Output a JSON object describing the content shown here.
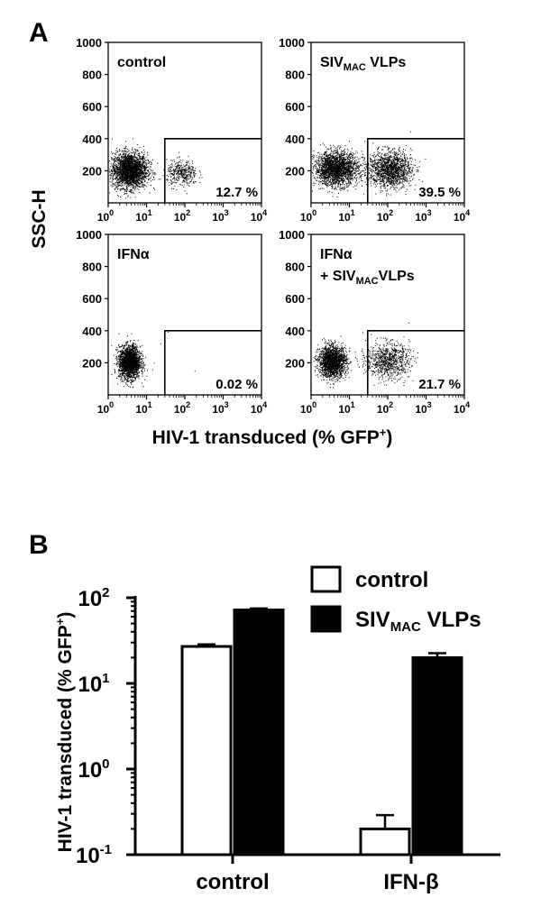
{
  "panel_a": {
    "letter": "A",
    "ylabel": "SSC-H",
    "xlabel_main": "HIV-1 transduced (% GFP",
    "xlabel_sup": "+",
    "xlabel_end": ")",
    "y_tick_labels": [
      "1000",
      "800",
      "600",
      "400",
      "200"
    ],
    "x_tick_base": "10",
    "x_tick_exps": [
      "0",
      "1",
      "2",
      "3",
      "4"
    ]
  },
  "panel_b": {
    "letter": "B",
    "ylabel_main": "HIV-1 transduced (% GFP",
    "ylabel_sup": "+",
    "ylabel_end": ")",
    "legend_control": "control",
    "legend_siv_prefix": "SIV",
    "legend_siv_sub": "MAC",
    "legend_siv_suffix": " VLPs",
    "tick_base": "10",
    "tick_exps": [
      "2",
      "1",
      "0",
      "-1"
    ]
  },
  "chart_data": [
    {
      "type": "scatter",
      "xscale": "log",
      "xlim": [
        1,
        10000
      ],
      "ylim": [
        0,
        1000
      ],
      "xlabel": "HIV-1 transduced (% GFP+)",
      "ylabel": "SSC-H",
      "gate": {
        "x_min": 30,
        "x_max": 10000,
        "y_min": 0,
        "y_max": 400
      },
      "panels": [
        {
          "id": "control",
          "label_main": "control",
          "label_sub": "",
          "label_suffix": "",
          "label_line2": "",
          "label_line2_sub": "",
          "label_line2_suffix": "",
          "percent": "12.7 %",
          "populations": [
            {
              "x_center_log": 0.55,
              "y_center": 205,
              "sx": 0.23,
              "sy": 55,
              "density": 2600
            },
            {
              "x_center_log": 1.92,
              "y_center": 185,
              "sx": 0.2,
              "sy": 40,
              "density": 380
            }
          ]
        },
        {
          "id": "siv",
          "label_main": "SIV",
          "label_sub": "MAC",
          "label_suffix": " VLPs",
          "label_line2": "",
          "label_line2_sub": "",
          "label_line2_suffix": "",
          "percent": "39.5 %",
          "populations": [
            {
              "x_center_log": 0.65,
              "y_center": 215,
              "sx": 0.28,
              "sy": 52,
              "density": 2200
            },
            {
              "x_center_log": 2.05,
              "y_center": 210,
              "sx": 0.28,
              "sy": 55,
              "density": 1500
            }
          ]
        },
        {
          "id": "ifna",
          "label_main": "IFNα",
          "label_sub": "",
          "label_suffix": "",
          "label_line2": "",
          "label_line2_sub": "",
          "label_line2_suffix": "",
          "percent": "0.02 %",
          "populations": [
            {
              "x_center_log": 0.55,
              "y_center": 205,
              "sx": 0.14,
              "sy": 50,
              "density": 2200
            },
            {
              "x_center_log": 2.0,
              "y_center": 250,
              "sx": 0.6,
              "sy": 90,
              "density": 4
            }
          ]
        },
        {
          "id": "ifna_siv",
          "label_main": "IFNα",
          "label_sub": "",
          "label_suffix": "",
          "label_line2": "+ SIV",
          "label_line2_sub": "MAC",
          "label_line2_suffix": "VLPs",
          "percent": "21.7 %",
          "populations": [
            {
              "x_center_log": 0.55,
              "y_center": 210,
              "sx": 0.18,
              "sy": 48,
              "density": 1900
            },
            {
              "x_center_log": 2.0,
              "y_center": 215,
              "sx": 0.28,
              "sy": 55,
              "density": 850
            }
          ]
        }
      ]
    },
    {
      "type": "bar",
      "yscale": "log",
      "ylim": [
        0.1,
        100
      ],
      "categories": [
        "control",
        "IFN-β"
      ],
      "ylabel": "HIV-1 transduced (% GFP+)",
      "legend": "top-right",
      "series": [
        {
          "name": "control",
          "color": "#ffffff",
          "values": [
            27,
            0.2
          ],
          "errors": [
            1.5,
            0.09
          ]
        },
        {
          "name": "SIVMAC VLPs",
          "color": "#000000",
          "values": [
            72,
            20
          ],
          "errors": [
            3,
            2.5
          ]
        }
      ]
    }
  ]
}
